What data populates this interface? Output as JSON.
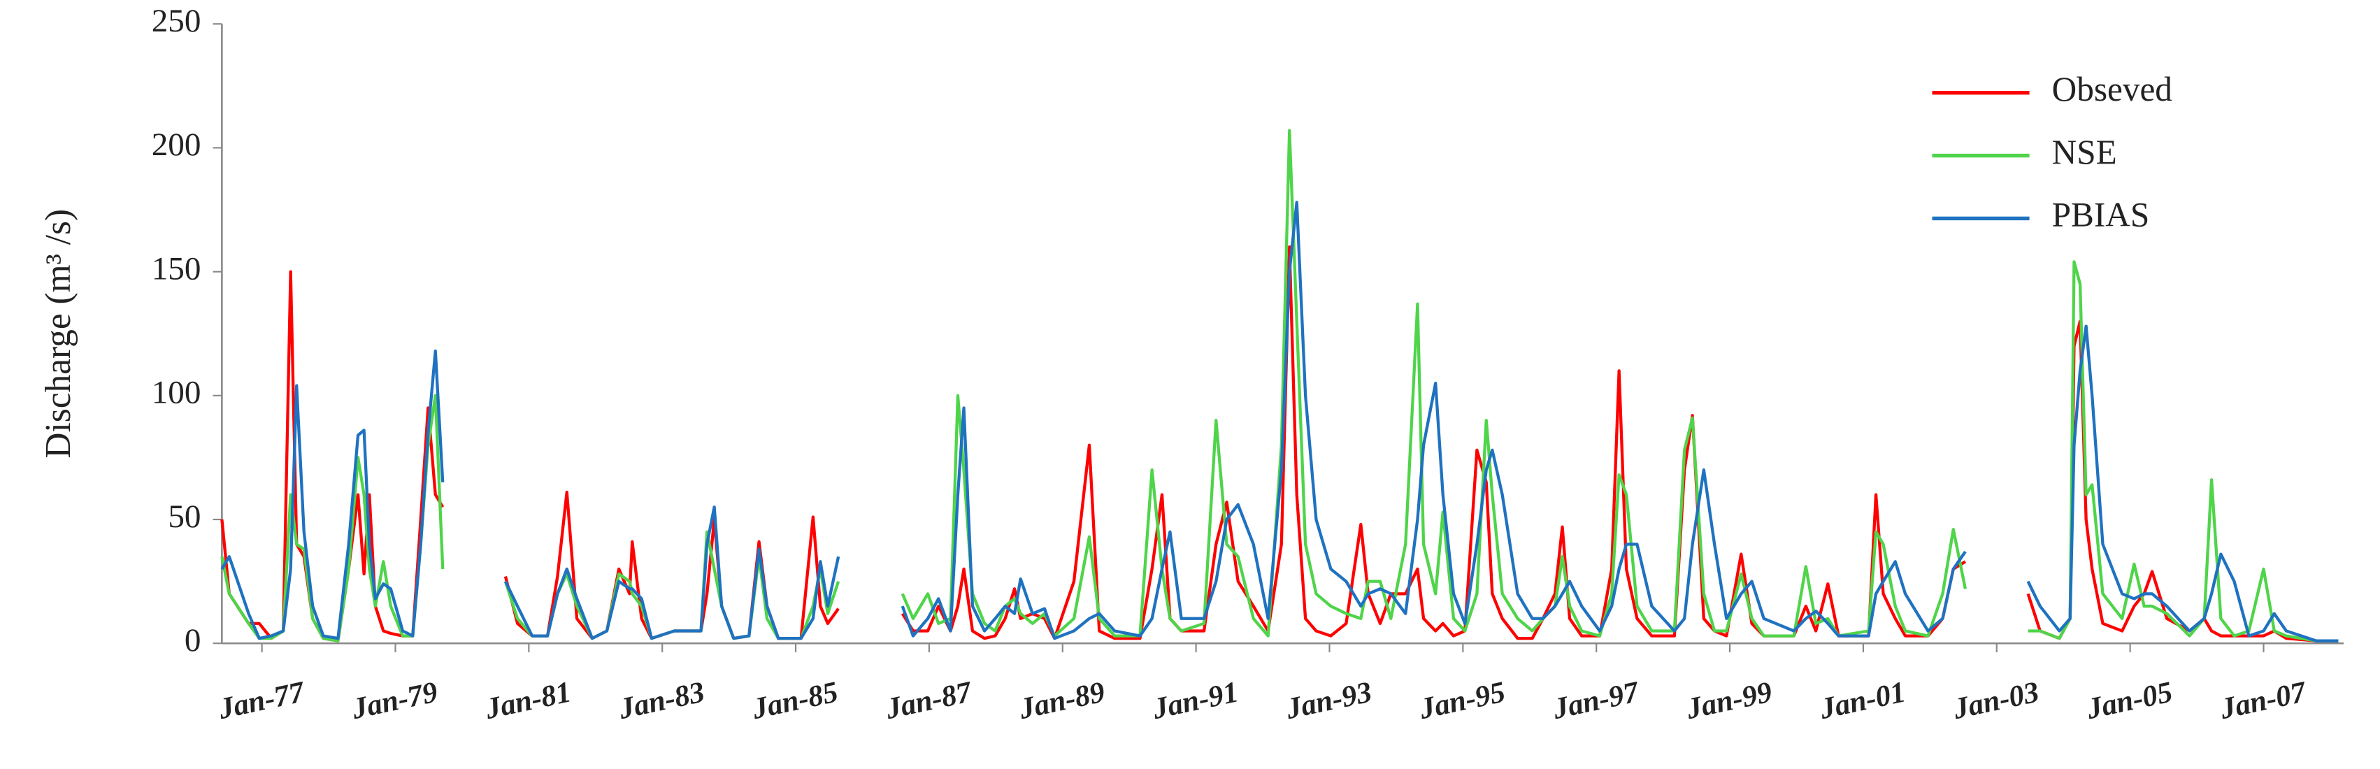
{
  "chart_data": {
    "type": "line",
    "y_label": "Discharge (m³ /s)",
    "legend": "top-right",
    "grid": false,
    "xlim": [
      1976.4,
      2008.2
    ],
    "ylim": [
      0,
      250
    ],
    "yticks": [
      0,
      50,
      100,
      150,
      200,
      250
    ],
    "xticks": [
      {
        "value": 1977,
        "label": "Jan-77"
      },
      {
        "value": 1979,
        "label": "Jan-79"
      },
      {
        "value": 1981,
        "label": "Jan-81"
      },
      {
        "value": 1983,
        "label": "Jan-83"
      },
      {
        "value": 1985,
        "label": "Jan-85"
      },
      {
        "value": 1987,
        "label": "Jan-87"
      },
      {
        "value": 1989,
        "label": "Jan-89"
      },
      {
        "value": 1991,
        "label": "Jan-91"
      },
      {
        "value": 1993,
        "label": "Jan-93"
      },
      {
        "value": 1995,
        "label": "Jan-95"
      },
      {
        "value": 1997,
        "label": "Jan-97"
      },
      {
        "value": 1999,
        "label": "Jan-99"
      },
      {
        "value": 2001,
        "label": "Jan-01"
      },
      {
        "value": 2003,
        "label": "Jan-03"
      },
      {
        "value": 2005,
        "label": "Jan-05"
      },
      {
        "value": 2007,
        "label": "Jan-07"
      }
    ],
    "x": [
      1976.4,
      1976.51,
      1976.8,
      1976.96,
      1977.14,
      1977.32,
      1977.43,
      1977.52,
      1977.63,
      1977.76,
      1977.92,
      1978.14,
      1978.3,
      1978.44,
      1978.53,
      1978.61,
      1978.7,
      1978.82,
      1978.93,
      1979.11,
      1979.26,
      1979.38,
      1979.49,
      1979.6,
      1979.71,
      1980.2,
      1980.65,
      1980.83,
      1981.05,
      1981.28,
      1981.43,
      1981.57,
      1981.72,
      1981.95,
      1982.17,
      1982.35,
      1982.51,
      1982.55,
      1982.69,
      1982.84,
      1983.18,
      1983.58,
      1983.67,
      1983.78,
      1983.89,
      1984.07,
      1984.3,
      1984.45,
      1984.57,
      1984.74,
      1985.08,
      1985.26,
      1985.37,
      1985.48,
      1985.64,
      1986.1,
      1986.6,
      1986.76,
      1986.98,
      1987.14,
      1987.32,
      1987.43,
      1987.52,
      1987.65,
      1987.83,
      1987.99,
      1988.14,
      1988.28,
      1988.37,
      1988.55,
      1988.73,
      1988.88,
      1989.17,
      1989.4,
      1989.55,
      1989.78,
      1990.16,
      1990.34,
      1990.49,
      1990.61,
      1990.78,
      1991.12,
      1991.3,
      1991.46,
      1991.63,
      1991.86,
      1992.08,
      1992.28,
      1992.4,
      1992.51,
      1992.64,
      1992.8,
      1993.02,
      1993.25,
      1993.47,
      1993.58,
      1993.76,
      1993.92,
      1994.14,
      1994.32,
      1994.41,
      1994.59,
      1994.7,
      1994.86,
      1995.03,
      1995.21,
      1995.35,
      1995.44,
      1995.59,
      1995.82,
      1996.04,
      1996.2,
      1996.38,
      1996.49,
      1996.6,
      1996.78,
      1997.05,
      1997.23,
      1997.34,
      1997.45,
      1997.61,
      1997.83,
      1998.17,
      1998.32,
      1998.44,
      1998.61,
      1998.77,
      1998.95,
      1999.17,
      1999.33,
      1999.51,
      1999.96,
      2000.14,
      2000.29,
      2000.47,
      2000.63,
      2001.08,
      2001.19,
      2001.3,
      2001.48,
      2001.63,
      2001.97,
      2002.19,
      2002.35,
      2002.53,
      2002.9,
      2003.47,
      2003.65,
      2003.94,
      2004.1,
      2004.16,
      2004.25,
      2004.34,
      2004.43,
      2004.59,
      2004.88,
      2005.06,
      2005.21,
      2005.33,
      2005.55,
      2005.89,
      2006.11,
      2006.22,
      2006.36,
      2006.56,
      2006.78,
      2007.0,
      2007.16,
      2007.34,
      2007.79,
      2008.12
    ],
    "series": [
      {
        "name": "Obseved",
        "color": "#ff0000",
        "values": [
          50,
          20,
          8,
          8,
          2,
          5,
          150,
          40,
          35,
          10,
          2,
          1,
          30,
          60,
          28,
          60,
          15,
          5,
          4,
          3,
          3,
          50,
          95,
          60,
          55,
          null,
          27,
          8,
          3,
          3,
          27,
          61,
          10,
          2,
          5,
          30,
          20,
          41,
          10,
          2,
          5,
          5,
          20,
          50,
          15,
          2,
          3,
          41,
          15,
          2,
          2,
          51,
          15,
          8,
          14,
          null,
          12,
          5,
          5,
          15,
          5,
          15,
          30,
          5,
          2,
          3,
          10,
          22,
          10,
          12,
          10,
          2,
          25,
          80,
          5,
          2,
          2,
          30,
          60,
          10,
          5,
          5,
          40,
          57,
          25,
          15,
          5,
          40,
          160,
          60,
          10,
          5,
          3,
          8,
          48,
          20,
          8,
          20,
          20,
          30,
          10,
          5,
          8,
          3,
          5,
          78,
          65,
          20,
          10,
          2,
          2,
          10,
          20,
          47,
          10,
          3,
          3,
          30,
          110,
          30,
          10,
          3,
          3,
          70,
          92,
          10,
          5,
          3,
          36,
          8,
          3,
          3,
          15,
          5,
          24,
          3,
          3,
          60,
          20,
          10,
          3,
          3,
          10,
          30,
          33,
          null,
          20,
          5,
          2,
          10,
          120,
          130,
          50,
          30,
          8,
          5,
          15,
          20,
          29,
          10,
          5,
          10,
          5,
          3,
          3,
          3,
          3,
          5,
          2,
          1,
          1
        ]
      },
      {
        "name": "NSE",
        "color": "#4fd44a",
        "values": [
          35,
          20,
          8,
          2,
          2,
          5,
          60,
          40,
          38,
          10,
          2,
          1,
          30,
          75,
          60,
          30,
          15,
          33,
          15,
          3,
          3,
          40,
          80,
          100,
          30,
          null,
          25,
          10,
          3,
          3,
          20,
          28,
          15,
          2,
          5,
          28,
          25,
          20,
          15,
          2,
          5,
          5,
          45,
          30,
          15,
          2,
          3,
          35,
          10,
          2,
          2,
          15,
          30,
          12,
          25,
          null,
          20,
          10,
          20,
          8,
          10,
          100,
          70,
          20,
          8,
          5,
          15,
          18,
          12,
          8,
          12,
          3,
          10,
          43,
          10,
          3,
          3,
          70,
          30,
          10,
          5,
          8,
          90,
          40,
          35,
          10,
          3,
          80,
          207,
          130,
          40,
          20,
          15,
          12,
          10,
          25,
          25,
          10,
          40,
          137,
          40,
          20,
          53,
          10,
          5,
          20,
          90,
          60,
          20,
          10,
          5,
          10,
          15,
          35,
          15,
          5,
          3,
          20,
          68,
          60,
          15,
          5,
          5,
          78,
          91,
          20,
          5,
          5,
          28,
          10,
          3,
          3,
          31,
          8,
          10,
          3,
          5,
          45,
          40,
          15,
          5,
          3,
          20,
          46,
          22,
          null,
          5,
          5,
          2,
          10,
          154,
          145,
          60,
          64,
          20,
          10,
          32,
          15,
          15,
          12,
          3,
          10,
          66,
          10,
          3,
          5,
          30,
          5,
          3,
          1,
          1
        ]
      },
      {
        "name": "PBIAS",
        "color": "#1f72c0",
        "values": [
          30,
          35,
          12,
          2,
          3,
          5,
          30,
          104,
          45,
          15,
          3,
          2,
          40,
          84,
          86,
          40,
          18,
          24,
          22,
          5,
          3,
          40,
          85,
          118,
          65,
          null,
          25,
          15,
          3,
          3,
          20,
          30,
          18,
          2,
          5,
          25,
          22,
          22,
          18,
          2,
          5,
          5,
          40,
          55,
          15,
          2,
          3,
          38,
          15,
          2,
          2,
          10,
          33,
          15,
          35,
          null,
          15,
          3,
          10,
          18,
          5,
          60,
          95,
          15,
          5,
          10,
          15,
          12,
          26,
          12,
          14,
          2,
          5,
          10,
          12,
          5,
          3,
          10,
          30,
          45,
          10,
          10,
          25,
          50,
          56,
          40,
          10,
          70,
          150,
          178,
          100,
          50,
          30,
          25,
          15,
          20,
          22,
          20,
          12,
          50,
          80,
          105,
          60,
          20,
          8,
          40,
          70,
          78,
          60,
          20,
          10,
          10,
          15,
          20,
          25,
          15,
          5,
          15,
          30,
          40,
          40,
          15,
          5,
          10,
          40,
          70,
          40,
          10,
          20,
          25,
          10,
          5,
          10,
          13,
          8,
          3,
          3,
          20,
          25,
          33,
          20,
          5,
          10,
          30,
          37,
          null,
          25,
          15,
          5,
          10,
          80,
          110,
          128,
          100,
          40,
          20,
          18,
          20,
          20,
          15,
          5,
          10,
          20,
          36,
          25,
          3,
          5,
          12,
          5,
          1,
          1
        ]
      }
    ]
  }
}
